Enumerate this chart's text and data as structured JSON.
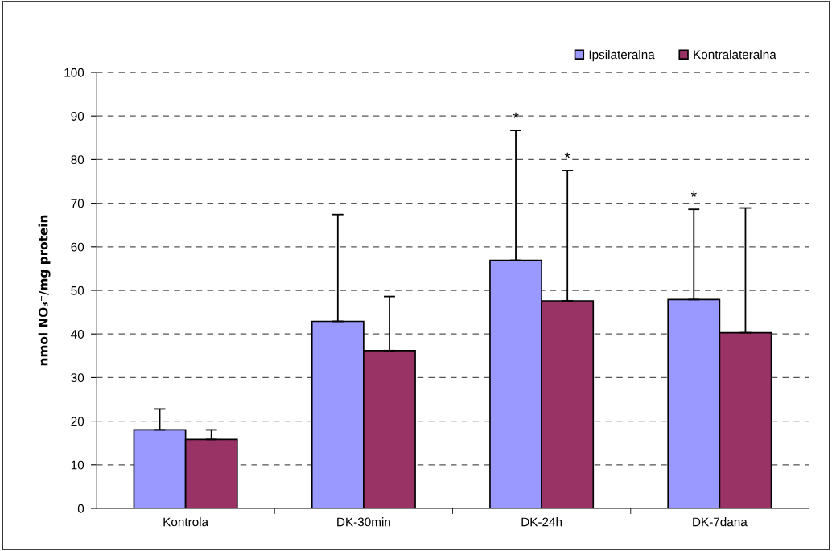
{
  "chart_data": {
    "type": "bar",
    "ylabel": "nmol NO₃⁻/mg protein",
    "categories": [
      "Kontrola",
      "DK-30min",
      "DK-24h",
      "DK-7dana"
    ],
    "series": [
      {
        "name": "Ipsilateralna",
        "color": "#9999ff",
        "values": [
          18.0,
          42.9,
          56.9,
          47.9
        ],
        "errors": [
          [
            18.0,
            22.8
          ],
          [
            42.9,
            67.4
          ],
          [
            56.9,
            86.7
          ],
          [
            47.9,
            68.6
          ]
        ]
      },
      {
        "name": "Kontralateralna",
        "color": "#993366",
        "values": [
          15.8,
          36.2,
          47.6,
          40.3
        ],
        "errors": [
          [
            15.8,
            18.0
          ],
          [
            36.2,
            48.6
          ],
          [
            47.6,
            77.5
          ],
          [
            40.3,
            68.9
          ]
        ]
      }
    ],
    "ylim": [
      0,
      100
    ],
    "yticks": [
      0,
      10,
      20,
      30,
      40,
      50,
      60,
      70,
      80,
      90,
      100
    ],
    "grid": "y",
    "legend": "top right",
    "annotations": [
      "*",
      "*",
      "*"
    ]
  }
}
